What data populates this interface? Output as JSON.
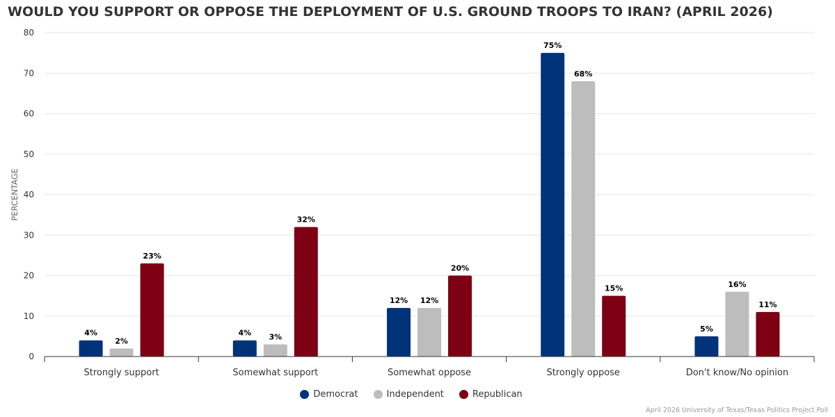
{
  "chart_data": {
    "type": "bar",
    "title": "WOULD YOU SUPPORT OR OPPOSE THE DEPLOYMENT OF U.S. GROUND TROOPS TO IRAN? (APRIL 2026)",
    "ylabel": "PERCENTAGE",
    "xlabel": "",
    "ylim": [
      0,
      80
    ],
    "yticks": [
      "0",
      "10",
      "20",
      "30",
      "40",
      "50",
      "60",
      "70",
      "80"
    ],
    "grid": true,
    "legend_position": "bottom-center",
    "categories": [
      "Strongly support",
      "Somewhat support",
      "Somewhat oppose",
      "Strongly oppose",
      "Don't know/No opinion"
    ],
    "series": [
      {
        "name": "Democrat",
        "color": "#00337a",
        "values": [
          4,
          4,
          12,
          75,
          5
        ],
        "labels": [
          "4%",
          "4%",
          "12%",
          "75%",
          "5%"
        ]
      },
      {
        "name": "Independent",
        "color": "#bdbdbd",
        "values": [
          2,
          3,
          12,
          68,
          16
        ],
        "labels": [
          "2%",
          "3%",
          "12%",
          "68%",
          "16%"
        ]
      },
      {
        "name": "Republican",
        "color": "#7d0013",
        "values": [
          23,
          32,
          20,
          15,
          11
        ],
        "labels": [
          "23%",
          "32%",
          "20%",
          "15%",
          "11%"
        ]
      }
    ]
  },
  "source": "April 2026 University of Texas/Texas Politics Project Poll"
}
